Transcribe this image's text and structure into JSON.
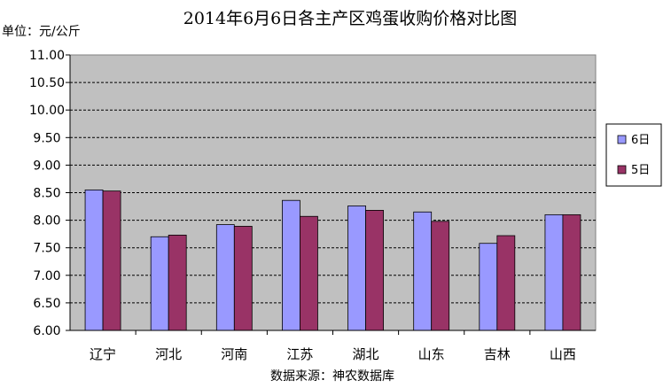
{
  "chart_data": {
    "type": "bar",
    "title": "2014年6月6日各主产区鸡蛋收购价格对比图",
    "unit_label": "单位：元/公斤",
    "source": "数据来源：神农数据库",
    "categories": [
      "辽宁",
      "河北",
      "河南",
      "江苏",
      "湖北",
      "山东",
      "吉林",
      "山西"
    ],
    "series": [
      {
        "name": "6日",
        "color": "#9999ff",
        "values": [
          8.55,
          7.7,
          7.92,
          8.36,
          8.26,
          8.15,
          7.58,
          8.1
        ]
      },
      {
        "name": "5日",
        "color": "#993366",
        "values": [
          8.53,
          7.73,
          7.89,
          8.07,
          8.18,
          7.98,
          7.72,
          8.1
        ]
      }
    ],
    "ylim": [
      6.0,
      11.0
    ],
    "yticks": [
      "6.00",
      "6.50",
      "7.00",
      "7.50",
      "8.00",
      "8.50",
      "9.00",
      "9.50",
      "10.00",
      "10.50",
      "11.00"
    ],
    "grid": true,
    "legend_position": "right",
    "plot_background": "#c0c0c0"
  }
}
